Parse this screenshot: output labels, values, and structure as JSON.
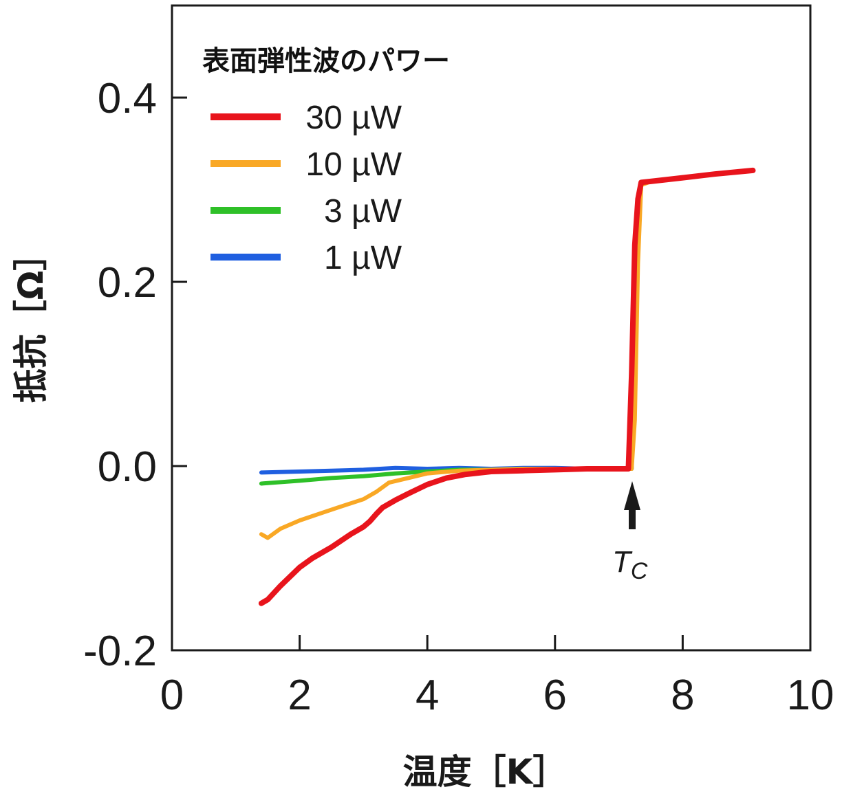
{
  "chart_data": {
    "type": "line",
    "xlabel": "温度［K］",
    "ylabel": "抵抗［Ω］",
    "xlim": [
      0,
      10
    ],
    "ylim": [
      -0.2,
      0.5
    ],
    "x_ticks": [
      "0",
      "2",
      "4",
      "6",
      "8",
      "10"
    ],
    "y_ticks": [
      "-0.2",
      "0.0",
      "0.2",
      "0.4"
    ],
    "x_tick_values": [
      0,
      2,
      4,
      6,
      8,
      10
    ],
    "y_tick_values": [
      -0.2,
      0.0,
      0.2,
      0.4
    ],
    "grid": false,
    "legend": {
      "title": "表面弾性波のパワー",
      "placement": "top-left"
    },
    "annotation": {
      "label": "T",
      "subscript": "C",
      "x": 7.2,
      "note": "arrow pointing at transition temperature"
    },
    "series": [
      {
        "name": "30 µW",
        "color": "#e8141c",
        "x": [
          1.4,
          1.5,
          1.7,
          2.0,
          2.2,
          2.5,
          2.8,
          3.0,
          3.1,
          3.2,
          3.3,
          3.5,
          3.7,
          4.0,
          4.3,
          4.6,
          5.0,
          5.5,
          6.0,
          6.5,
          7.0,
          7.15,
          7.2,
          7.25,
          7.3,
          7.35,
          7.5,
          8.0,
          8.5,
          9.1
        ],
        "y": [
          -0.149,
          -0.145,
          -0.13,
          -0.11,
          -0.1,
          -0.088,
          -0.074,
          -0.066,
          -0.06,
          -0.052,
          -0.045,
          -0.037,
          -0.03,
          -0.02,
          -0.013,
          -0.009,
          -0.006,
          -0.005,
          -0.004,
          -0.003,
          -0.003,
          -0.003,
          0.1,
          0.24,
          0.29,
          0.308,
          0.309,
          0.313,
          0.317,
          0.321
        ]
      },
      {
        "name": "10 µW",
        "color": "#f9a825",
        "x": [
          1.4,
          1.5,
          1.7,
          2.0,
          2.3,
          2.6,
          3.0,
          3.2,
          3.4,
          3.7,
          4.0,
          4.5,
          5.0,
          5.5,
          6.0,
          6.5,
          7.0,
          7.2,
          7.25,
          7.3,
          7.35,
          7.5,
          8.0,
          8.5,
          9.1
        ],
        "y": [
          -0.074,
          -0.078,
          -0.068,
          -0.059,
          -0.052,
          -0.045,
          -0.036,
          -0.028,
          -0.018,
          -0.013,
          -0.008,
          -0.005,
          -0.004,
          -0.003,
          -0.003,
          -0.003,
          -0.003,
          -0.003,
          0.05,
          0.22,
          0.305,
          0.309,
          0.313,
          0.317,
          0.321
        ]
      },
      {
        "name": "3 µW",
        "color": "#2ec028",
        "x": [
          1.4,
          2.0,
          2.5,
          3.0,
          3.5,
          4.0,
          4.5,
          5.0,
          5.5,
          6.0,
          6.5,
          7.0,
          7.2,
          7.25,
          7.3,
          7.35,
          7.5,
          8.0,
          8.5,
          9.1
        ],
        "y": [
          -0.019,
          -0.016,
          -0.013,
          -0.011,
          -0.008,
          -0.006,
          -0.004,
          -0.004,
          -0.003,
          -0.003,
          -0.003,
          -0.003,
          -0.003,
          0.1,
          0.25,
          0.306,
          0.309,
          0.313,
          0.317,
          0.321
        ]
      },
      {
        "name": "1 µW",
        "color": "#1f5fe0",
        "x": [
          1.4,
          2.0,
          2.5,
          3.0,
          3.5,
          4.0,
          4.5,
          5.0,
          5.5,
          6.0,
          6.5,
          7.0,
          7.2,
          7.25,
          7.3,
          7.35,
          7.5,
          8.0,
          8.5,
          9.1
        ],
        "y": [
          -0.007,
          -0.006,
          -0.005,
          -0.004,
          -0.002,
          -0.003,
          -0.002,
          -0.003,
          -0.002,
          -0.002,
          -0.003,
          -0.003,
          -0.003,
          0.1,
          0.25,
          0.306,
          0.309,
          0.313,
          0.317,
          0.321
        ]
      }
    ]
  }
}
